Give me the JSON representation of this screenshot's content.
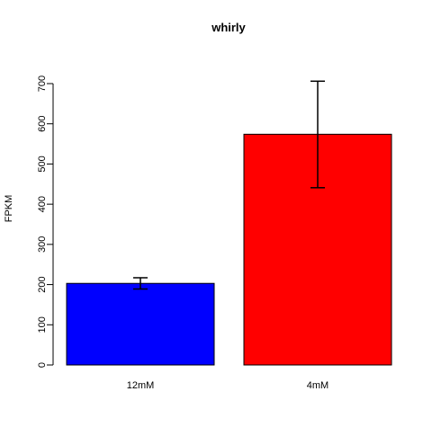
{
  "chart_data": {
    "type": "bar",
    "title": "whirly",
    "xlabel": "",
    "ylabel": "FPKM",
    "categories": [
      "12mM",
      "4mM"
    ],
    "values": [
      203,
      574
    ],
    "error_lower": [
      189,
      441
    ],
    "error_upper": [
      217,
      706
    ],
    "colors": [
      "#0000FF",
      "#FF0000"
    ],
    "ylim": [
      0,
      700
    ],
    "yticks": [
      0,
      100,
      200,
      300,
      400,
      500,
      600,
      700
    ],
    "ytick_labels": [
      "0",
      "100",
      "200",
      "300",
      "400",
      "500",
      "600",
      "700"
    ],
    "grid": false,
    "legend": "none"
  }
}
